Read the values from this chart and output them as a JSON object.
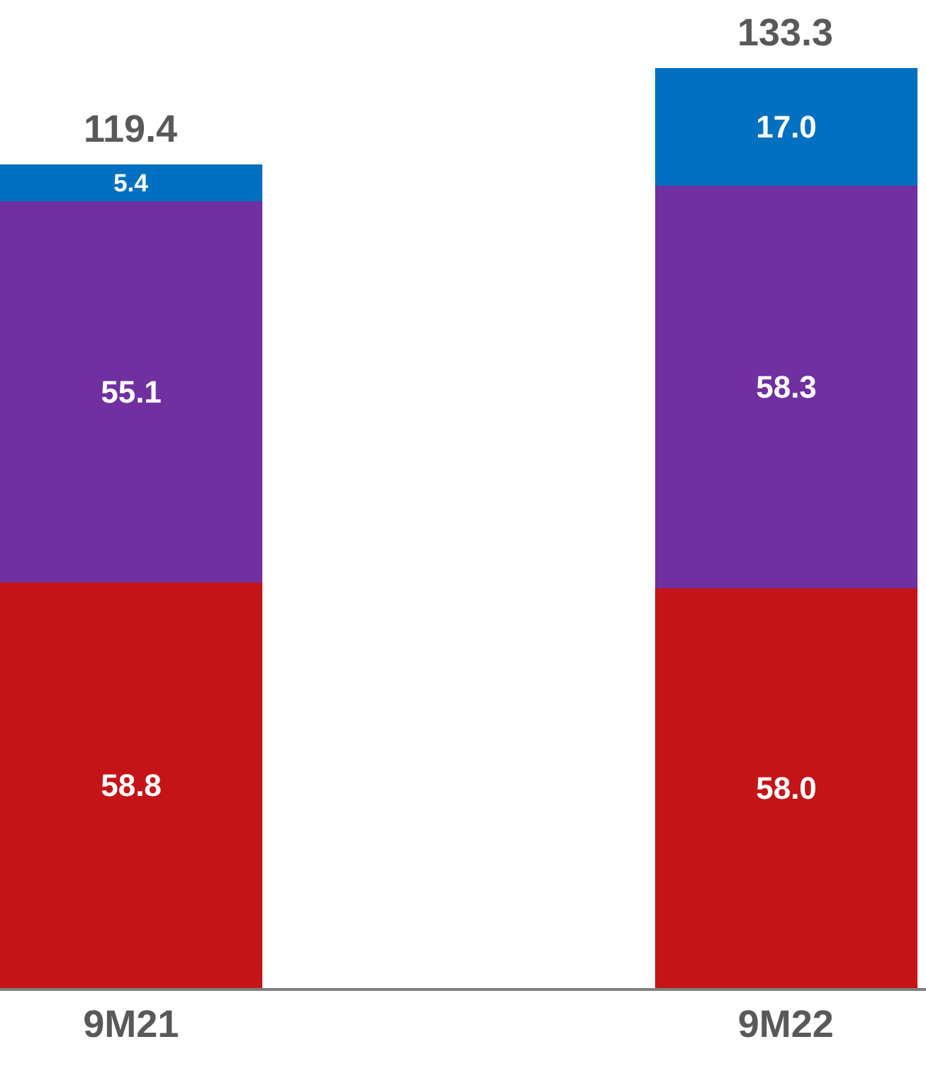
{
  "chart_data": {
    "type": "bar",
    "stacked": true,
    "categories": [
      "9M21",
      "9M22"
    ],
    "series": [
      {
        "color": "#c41418",
        "values": [
          58.8,
          58.0
        ],
        "value_labels": [
          "58.8",
          "58.0"
        ]
      },
      {
        "color": "#7030a0",
        "values": [
          55.1,
          58.3
        ],
        "value_labels": [
          "55.1",
          "58.3"
        ]
      },
      {
        "color": "#0070c0",
        "values": [
          5.4,
          17.0
        ],
        "value_labels": [
          "5.4",
          "17.0"
        ]
      }
    ],
    "totals": [
      "119.4",
      "133.3"
    ]
  }
}
